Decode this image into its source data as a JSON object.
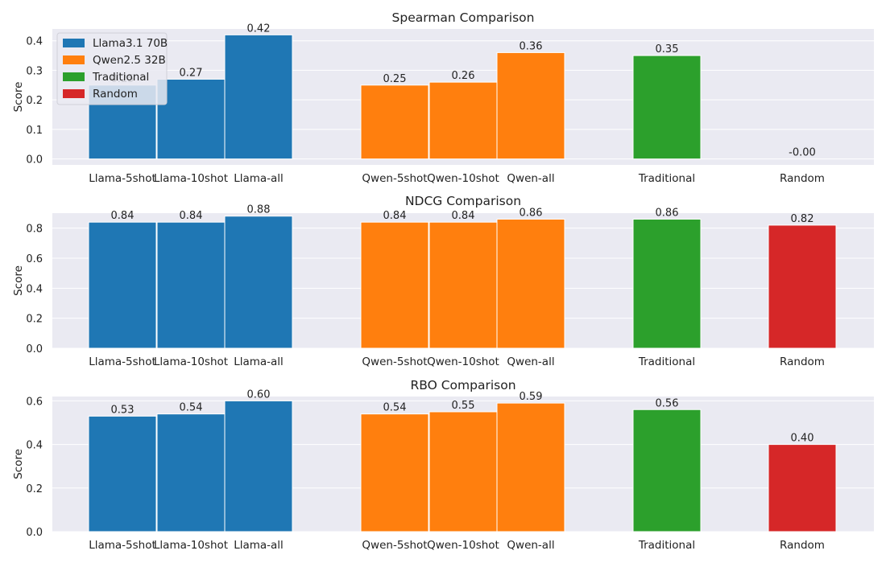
{
  "legend": [
    {
      "label": "Llama3.1 70B",
      "color": "#1f77b4"
    },
    {
      "label": "Qwen2.5 32B",
      "color": "#ff7f0e"
    },
    {
      "label": "Traditional",
      "color": "#2ca02c"
    },
    {
      "label": "Random",
      "color": "#d62728"
    }
  ],
  "chart_data": [
    {
      "type": "bar",
      "title": "Spearman Comparison",
      "xlabel": "",
      "ylabel": "Score",
      "ylim": [
        -0.02,
        0.44
      ],
      "yticks": [
        "0.0",
        "0.1",
        "0.2",
        "0.3",
        "0.4"
      ],
      "ytick_values": [
        0.0,
        0.1,
        0.2,
        0.3,
        0.4
      ],
      "grid": true,
      "legend_position": "top-left",
      "categories": [
        "Llama-5shot",
        "Llama-10shot",
        "Llama-all",
        "Qwen-5shot",
        "Qwen-10shot",
        "Qwen-all",
        "Traditional",
        "Random"
      ],
      "values": [
        0.25,
        0.27,
        0.42,
        0.25,
        0.26,
        0.36,
        0.35,
        -0.0
      ],
      "data_labels": [
        "0.25",
        "0.27",
        "0.42",
        "0.25",
        "0.26",
        "0.36",
        "0.35",
        "-0.00"
      ]
    },
    {
      "type": "bar",
      "title": "NDCG Comparison",
      "xlabel": "",
      "ylabel": "Score",
      "ylim": [
        0.0,
        0.9
      ],
      "yticks": [
        "0.0",
        "0.2",
        "0.4",
        "0.6",
        "0.8"
      ],
      "ytick_values": [
        0.0,
        0.2,
        0.4,
        0.6,
        0.8
      ],
      "grid": true,
      "categories": [
        "Llama-5shot",
        "Llama-10shot",
        "Llama-all",
        "Qwen-5shot",
        "Qwen-10shot",
        "Qwen-all",
        "Traditional",
        "Random"
      ],
      "values": [
        0.84,
        0.84,
        0.88,
        0.84,
        0.84,
        0.86,
        0.86,
        0.82
      ],
      "data_labels": [
        "0.84",
        "0.84",
        "0.88",
        "0.84",
        "0.84",
        "0.86",
        "0.86",
        "0.82"
      ]
    },
    {
      "type": "bar",
      "title": "RBO Comparison",
      "xlabel": "",
      "ylabel": "Score",
      "ylim": [
        0.0,
        0.62
      ],
      "yticks": [
        "0.0",
        "0.2",
        "0.4",
        "0.6"
      ],
      "ytick_values": [
        0.0,
        0.2,
        0.4,
        0.6
      ],
      "grid": true,
      "categories": [
        "Llama-5shot",
        "Llama-10shot",
        "Llama-all",
        "Qwen-5shot",
        "Qwen-10shot",
        "Qwen-all",
        "Traditional",
        "Random"
      ],
      "values": [
        0.53,
        0.54,
        0.6,
        0.54,
        0.55,
        0.59,
        0.56,
        0.4
      ],
      "data_labels": [
        "0.53",
        "0.54",
        "0.60",
        "0.54",
        "0.55",
        "0.59",
        "0.56",
        "0.40"
      ]
    }
  ],
  "colors": {
    "group_colors": [
      "#1f77b4",
      "#1f77b4",
      "#1f77b4",
      "#ff7f0e",
      "#ff7f0e",
      "#ff7f0e",
      "#2ca02c",
      "#d62728"
    ],
    "plot_background": "#eaeaf2",
    "grid": "#ffffff"
  }
}
